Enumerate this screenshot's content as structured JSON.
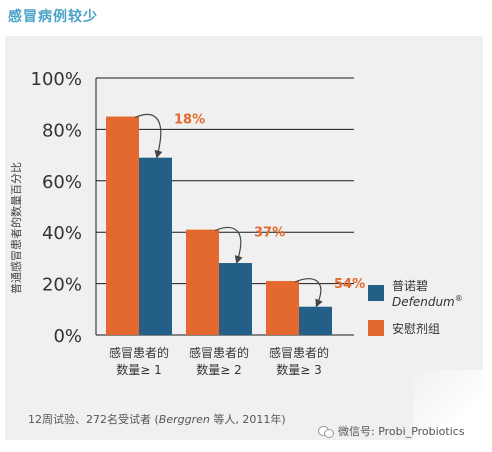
{
  "page_title": "感冒病例较少",
  "chart_data": {
    "type": "bar",
    "title": "",
    "ylabel": "普通感冒患者的数量百分比",
    "xlabel": "",
    "ylim": [
      0,
      100
    ],
    "yticks": [
      0,
      20,
      40,
      60,
      80,
      100
    ],
    "ytick_labels": [
      "0%",
      "20%",
      "40%",
      "60%",
      "80%",
      "100%"
    ],
    "grid": true,
    "legend_position": "right",
    "categories": [
      [
        "感冒患者的",
        "数量≥ 1"
      ],
      [
        "感冒患者的",
        "数量≥ 2"
      ],
      [
        "感冒患者的",
        "数量≥ 3"
      ]
    ],
    "series": [
      {
        "name": "安慰剂组",
        "color": "#e4692f",
        "values": [
          85,
          41,
          21
        ]
      },
      {
        "name": "普诺碧 Defendum®",
        "color": "#235f87",
        "values": [
          69,
          28,
          11
        ]
      }
    ],
    "annotations": [
      "18%",
      "37%",
      "54%"
    ],
    "annotation_color": "#e4692f"
  },
  "legend": {
    "entries": [
      {
        "line1": "普诺碧",
        "line2": "Defendum",
        "sup": "®",
        "color": "#235f87"
      },
      {
        "line1": "安慰剂组",
        "line2": "",
        "sup": "",
        "color": "#e4692f"
      }
    ]
  },
  "footnote": {
    "prefix": "12周试验、272名受试者 (",
    "italic": "Berggren",
    "suffix": " 等人, 2011年)"
  },
  "watermark": "微信号: Probi_Probiotics"
}
